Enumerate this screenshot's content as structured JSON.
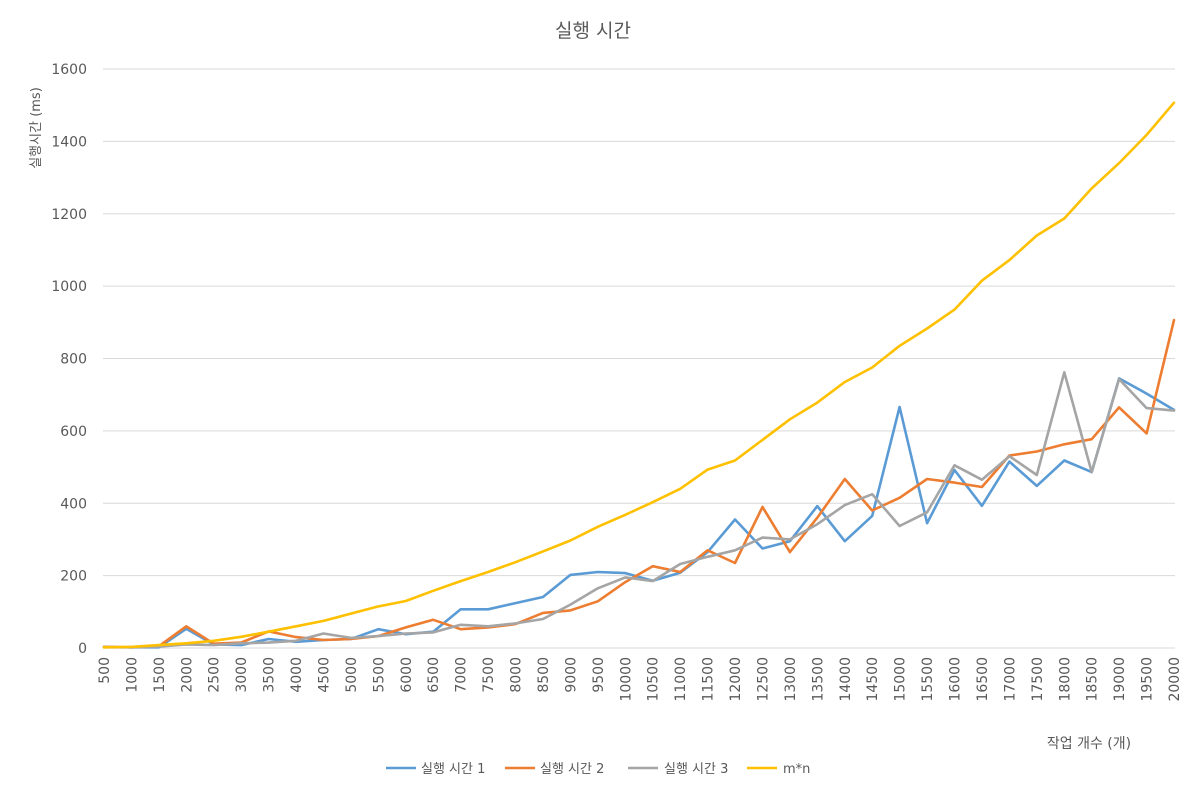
{
  "chart_data": {
    "type": "line",
    "title": "실행 시간",
    "xlabel": "작업 개수 (개)",
    "ylabel": "실행시간 (ms)",
    "ylim": [
      0,
      1600
    ],
    "yticks": [
      0,
      200,
      400,
      600,
      800,
      1000,
      1200,
      1400,
      1600
    ],
    "grid": true,
    "legend": "bottom",
    "categories": [
      "500",
      "1000",
      "1500",
      "2000",
      "2500",
      "3000",
      "3500",
      "4000",
      "4500",
      "5000",
      "5500",
      "6000",
      "6500",
      "7000",
      "7500",
      "8000",
      "8500",
      "9000",
      "9500",
      "10000",
      "10500",
      "11000",
      "11500",
      "12000",
      "12500",
      "13000",
      "13500",
      "14000",
      "14500",
      "15000",
      "15500",
      "16000",
      "16500",
      "17000",
      "17500",
      "18000",
      "18500",
      "19000",
      "19500",
      "20000"
    ],
    "series": [
      {
        "name": "실행 시간 1",
        "color": "#5B9BD5",
        "values": [
          3,
          2,
          2,
          53,
          10,
          8,
          25,
          17,
          22,
          25,
          52,
          38,
          45,
          107,
          107,
          124,
          141,
          202,
          210,
          207,
          186,
          208,
          265,
          355,
          275,
          295,
          392,
          295,
          365,
          666,
          345,
          492,
          393,
          515,
          448,
          518,
          486,
          745,
          703,
          658
        ]
      },
      {
        "name": "실행 시간 2",
        "color": "#ED7D31",
        "values": [
          3,
          2,
          5,
          60,
          12,
          15,
          46,
          30,
          22,
          25,
          33,
          57,
          78,
          52,
          57,
          66,
          97,
          104,
          129,
          182,
          226,
          210,
          270,
          235,
          390,
          265,
          360,
          467,
          380,
          415,
          467,
          457,
          445,
          532,
          543,
          563,
          577,
          665,
          593,
          906
        ]
      },
      {
        "name": "실행 시간 3",
        "color": "#A5A5A5",
        "values": [
          2,
          2,
          4,
          10,
          8,
          13,
          15,
          20,
          40,
          28,
          33,
          40,
          43,
          64,
          60,
          68,
          80,
          120,
          165,
          195,
          185,
          232,
          252,
          270,
          305,
          300,
          342,
          395,
          425,
          337,
          375,
          505,
          465,
          530,
          478,
          762,
          486,
          743,
          663,
          656
        ]
      },
      {
        "name": "m*n",
        "color": "#FFC000",
        "values": [
          2,
          3,
          8,
          13,
          20,
          31,
          45,
          60,
          75,
          95,
          115,
          130,
          158,
          185,
          210,
          237,
          267,
          297,
          335,
          368,
          403,
          440,
          493,
          518,
          575,
          632,
          678,
          735,
          775,
          835,
          883,
          935,
          1015,
          1072,
          1140,
          1187,
          1270,
          1340,
          1418,
          1507
        ]
      }
    ]
  }
}
